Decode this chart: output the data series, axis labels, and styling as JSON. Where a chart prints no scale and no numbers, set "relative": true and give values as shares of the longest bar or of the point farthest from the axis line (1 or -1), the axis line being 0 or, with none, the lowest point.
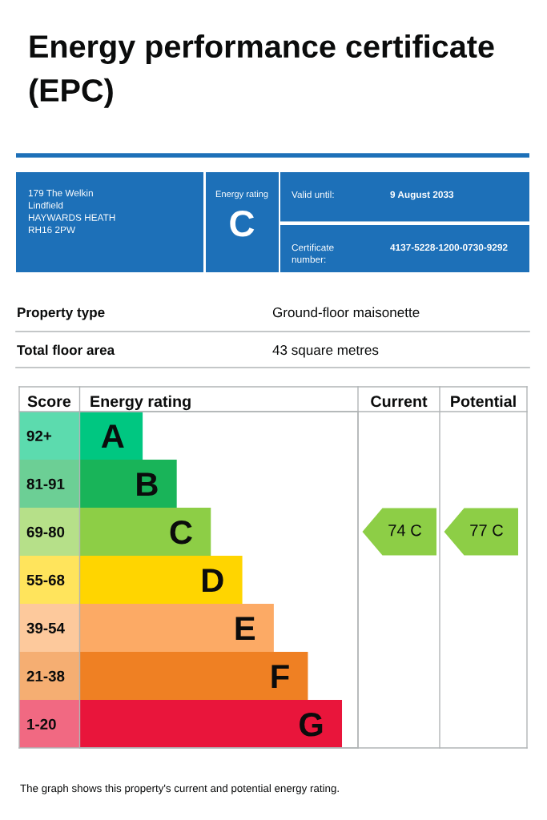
{
  "chart_data": [
    {
      "type": "other",
      "title": "Energy performance certificate (EPC)",
      "annotations": [
        "179 The Welkin\nLindfield\nHAYWARDS HEATH\nRH16 2PW",
        "Energy rating",
        "C",
        "Valid until:",
        "9 August 2033",
        "Certificate\nnumber:",
        "4137-5228-1200-0730-9292",
        "Property type",
        "Ground-floor maisonette",
        "Total floor area",
        "43 square metres"
      ]
    },
    {
      "type": "bar",
      "orientation": "horizontal",
      "relative": true,
      "xlabel": "Energy rating",
      "ylabel": "Score",
      "categories": [
        "92+",
        "81-91",
        "69-80",
        "55-68",
        "39-54",
        "21-38",
        "1-20"
      ],
      "values": [
        0.24,
        0.37,
        0.5,
        0.62,
        0.74,
        0.87,
        1
      ],
      "colors": [
        "#00c781",
        "#19b459",
        "#8dce46",
        "#ffd500",
        "#fcaa65",
        "#ef8023",
        "#e9153b"
      ],
      "annotations": [
        "Current",
        "Potential",
        "74 C",
        "77 C",
        "The graph shows this property's current and potential energy rating.",
        {
          "text": "A",
          "x": 0.24,
          "y": "92+"
        },
        {
          "text": "B",
          "x": 0.37,
          "y": "81-91"
        },
        {
          "text": "C",
          "x": 0.5,
          "y": "69-80"
        },
        {
          "text": "D",
          "x": 0.62,
          "y": "55-68"
        },
        {
          "text": "E",
          "x": 0.74,
          "y": "39-54"
        },
        {
          "text": "F",
          "x": 0.87,
          "y": "21-38"
        },
        {
          "text": "G",
          "x": 1,
          "y": "1-20"
        }
      ]
    }
  ]
}
